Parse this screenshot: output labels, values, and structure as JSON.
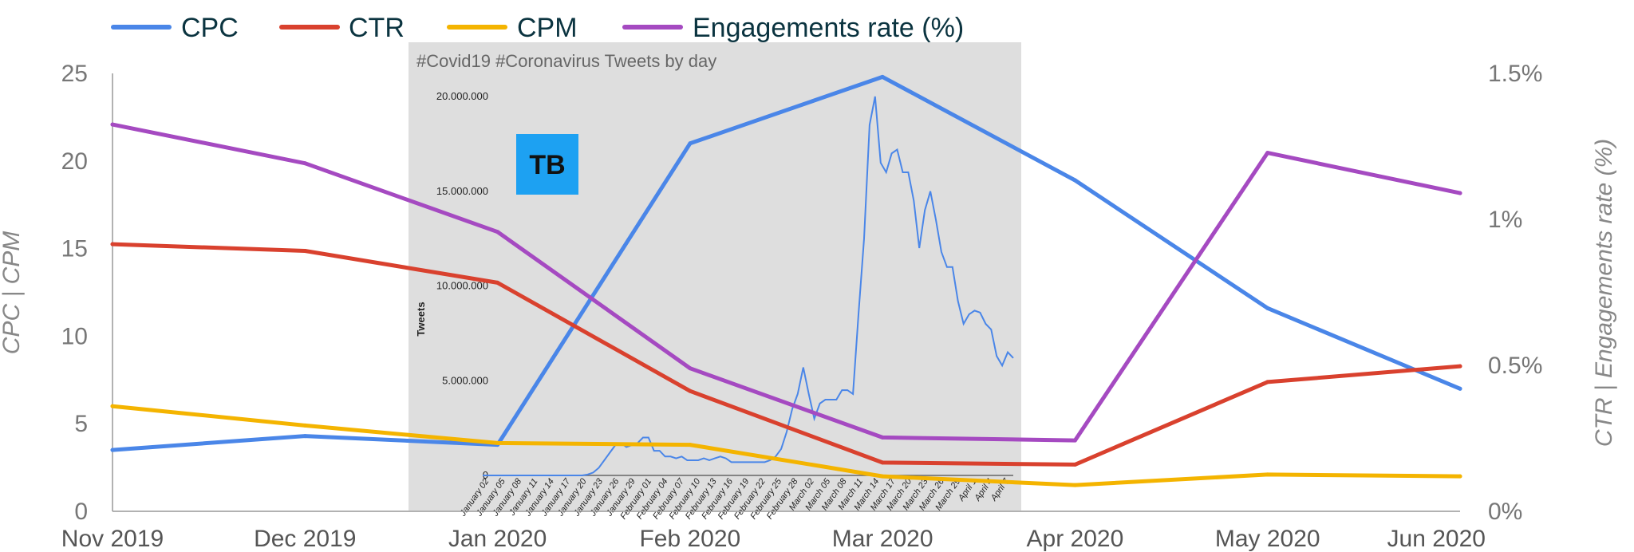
{
  "chart_data": [
    {
      "type": "line",
      "categories": [
        "Nov 2019",
        "Dec 2019",
        "Jan 2020",
        "Feb 2020",
        "Mar 2020",
        "Apr 2020",
        "May 2020",
        "Jun 2020"
      ],
      "left_axis": {
        "label": "CPC | CPM",
        "ticks": [
          "0",
          "5",
          "10",
          "15",
          "20",
          "25"
        ],
        "ylim": [
          0,
          25
        ]
      },
      "right_axis": {
        "label": "CTR | Engagements rate (%)",
        "ticks": [
          "0%",
          "0.5%",
          "1%",
          "1.5%"
        ],
        "ylim": [
          0,
          1.5
        ]
      },
      "legend_position": "top-left",
      "series": [
        {
          "name": "CPC",
          "axis": "left",
          "color": "#4a86e8",
          "values": [
            3.5,
            4.3,
            3.8,
            21.0,
            24.8,
            18.9,
            11.6,
            7.0
          ]
        },
        {
          "name": "CTR",
          "axis": "right",
          "color": "#d9412e",
          "values": [
            0.915,
            0.892,
            0.783,
            0.412,
            0.167,
            0.16,
            0.443,
            0.497
          ]
        },
        {
          "name": "CPM",
          "axis": "left",
          "color": "#f4b400",
          "values": [
            6.0,
            4.9,
            3.9,
            3.8,
            2.0,
            1.5,
            2.1,
            2.0
          ]
        },
        {
          "name": "Engagements rate (%)",
          "axis": "right",
          "color": "#a54ac1",
          "values": [
            1.325,
            1.192,
            0.957,
            0.49,
            0.253,
            0.243,
            1.228,
            1.09
          ]
        }
      ]
    },
    {
      "type": "line",
      "title": "#Covid19 #Coronavirus Tweets by day",
      "ylabel": "Tweets",
      "ylim": [
        0,
        20000000
      ],
      "y_ticks": [
        "0",
        "5.000.000",
        "10.000.000",
        "15.000.000",
        "20.000.000"
      ],
      "x_ticks": [
        "January 02",
        "January 05",
        "January 08",
        "January 11",
        "January 14",
        "January 17",
        "January 20",
        "January 23",
        "January 26",
        "January 29",
        "February 01",
        "February 04",
        "February 07",
        "February 10",
        "February 13",
        "February 16",
        "February 19",
        "February 22",
        "February 25",
        "February 28",
        "March 02",
        "March 05",
        "March 08",
        "March 11",
        "March 14",
        "March 17",
        "March 20",
        "March 23",
        "March 26",
        "March 29",
        "April 1",
        "April 4",
        "April 7"
      ],
      "logo_text": "TB",
      "series": [
        {
          "name": "Tweets",
          "color": "#4a86e8",
          "values": [
            0,
            0,
            0,
            0,
            0,
            0,
            0,
            0,
            0,
            0,
            0,
            0,
            0,
            0,
            0,
            0,
            0,
            0,
            0,
            50000,
            150000,
            400000,
            800000,
            1200000,
            1600000,
            1700000,
            1500000,
            1600000,
            1700000,
            2000000,
            2000000,
            1300000,
            1300000,
            1000000,
            1000000,
            900000,
            1000000,
            800000,
            800000,
            800000,
            900000,
            800000,
            900000,
            1000000,
            900000,
            700000,
            700000,
            700000,
            700000,
            700000,
            700000,
            700000,
            800000,
            1000000,
            1400000,
            2300000,
            3500000,
            4300000,
            5700000,
            4300000,
            3000000,
            3800000,
            4000000,
            4000000,
            4000000,
            4500000,
            4500000,
            4300000,
            8500000,
            12500000,
            18500000,
            20000000,
            16500000,
            16000000,
            17000000,
            17200000,
            16000000,
            16000000,
            14500000,
            12000000,
            14000000,
            15000000,
            13500000,
            11800000,
            11000000,
            11000000,
            9200000,
            8000000,
            8500000,
            8700000,
            8600000,
            8000000,
            7700000,
            6300000,
            5800000,
            6500000,
            6200000
          ]
        }
      ]
    }
  ]
}
